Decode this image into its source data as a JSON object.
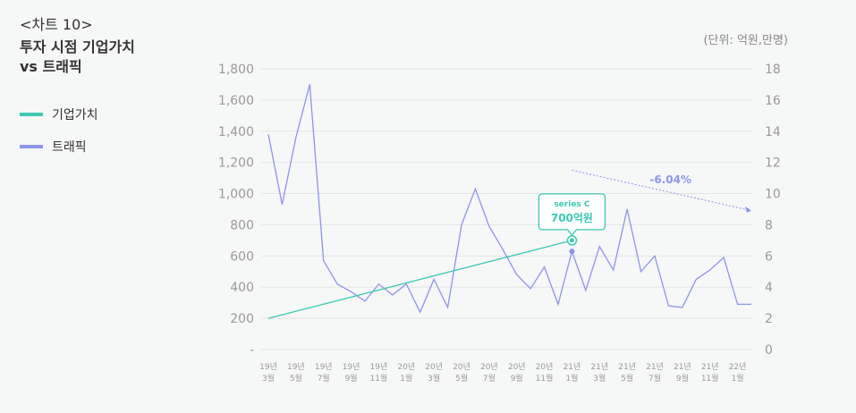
{
  "chart_number": "<차트 10>",
  "chart_title_line1": "투자 시점 기업가치",
  "chart_title_line2": "vs 트래픽",
  "unit_label": "(단위: 억원,만명)",
  "colors": {
    "enterprise_value": "#3cc9b2",
    "traffic": "#8b95e8",
    "trend": "#8b95e8"
  },
  "chart_data": {
    "type": "line",
    "title": "투자 시점 기업가치 vs 트래픽",
    "legend": [
      "기업가치",
      "트래픽"
    ],
    "x": [
      "19년 3월",
      "19년 4월",
      "19년 5월",
      "19년 6월",
      "19년 7월",
      "19년 8월",
      "19년 9월",
      "19년 10월",
      "19년 11월",
      "19년 12월",
      "20년 1월",
      "20년 2월",
      "20년 3월",
      "20년 4월",
      "20년 5월",
      "20년 6월",
      "20년 7월",
      "20년 8월",
      "20년 9월",
      "20년 10월",
      "20년 11월",
      "20년 12월",
      "21년 1월",
      "21년 2월",
      "21년 3월",
      "21년 4월",
      "21년 5월",
      "21년 6월",
      "21년 7월",
      "21년 8월",
      "21년 9월",
      "21년 10월",
      "21년 11월",
      "21년 12월",
      "22년 1월",
      "22년 2월"
    ],
    "x_tick_labels": [
      {
        "top": "19년",
        "bottom": "3월",
        "index": 0
      },
      {
        "top": "19년",
        "bottom": "5월",
        "index": 2
      },
      {
        "top": "19년",
        "bottom": "7월",
        "index": 4
      },
      {
        "top": "19년",
        "bottom": "9월",
        "index": 6
      },
      {
        "top": "19년",
        "bottom": "11월",
        "index": 8
      },
      {
        "top": "20년",
        "bottom": "1월",
        "index": 10
      },
      {
        "top": "20년",
        "bottom": "3월",
        "index": 12
      },
      {
        "top": "20년",
        "bottom": "5월",
        "index": 14
      },
      {
        "top": "20년",
        "bottom": "7월",
        "index": 16
      },
      {
        "top": "20년",
        "bottom": "9월",
        "index": 18
      },
      {
        "top": "20년",
        "bottom": "11월",
        "index": 20
      },
      {
        "top": "21년",
        "bottom": "1월",
        "index": 22
      },
      {
        "top": "21년",
        "bottom": "3월",
        "index": 24
      },
      {
        "top": "21년",
        "bottom": "5월",
        "index": 26
      },
      {
        "top": "21년",
        "bottom": "7월",
        "index": 28
      },
      {
        "top": "21년",
        "bottom": "9월",
        "index": 30
      },
      {
        "top": "21년",
        "bottom": "11월",
        "index": 32
      },
      {
        "top": "22년",
        "bottom": "1월",
        "index": 34
      }
    ],
    "y_left": {
      "ticks": [
        "-",
        "200",
        "400",
        "600",
        "800",
        "1,000",
        "1,200",
        "1,400",
        "1,600",
        "1,800"
      ],
      "range": [
        0,
        1800
      ]
    },
    "y_right": {
      "ticks": [
        "0",
        "2",
        "4",
        "6",
        "8",
        "10",
        "12",
        "14",
        "16",
        "18"
      ],
      "range": [
        0,
        18
      ]
    },
    "series": [
      {
        "name": "기업가치",
        "axis": "left",
        "points": [
          {
            "x": "19년 3월",
            "y": 200
          },
          {
            "x": "21년 1월",
            "y": 700
          }
        ]
      },
      {
        "name": "트래픽",
        "axis": "right",
        "values": [
          13.8,
          9.3,
          13.6,
          17.0,
          5.7,
          4.2,
          3.7,
          3.1,
          4.2,
          3.5,
          4.2,
          2.4,
          4.5,
          2.7,
          8.0,
          10.3,
          7.9,
          6.4,
          4.8,
          3.9,
          5.3,
          2.9,
          6.3,
          3.8,
          6.6,
          5.1,
          9.0,
          5.0,
          6.0,
          2.8,
          2.7,
          4.5,
          5.1,
          5.9,
          2.9,
          2.9
        ]
      }
    ],
    "annotation_callout": {
      "title": "series C",
      "value": "700억원",
      "x": "21년 1월",
      "y": 700
    },
    "trend_annotation": {
      "label": "-6.04%",
      "x_from": "21년 1월",
      "x_to": "22년 2월",
      "y_from": 11.5,
      "y_to": 8.9
    },
    "grid": true
  }
}
